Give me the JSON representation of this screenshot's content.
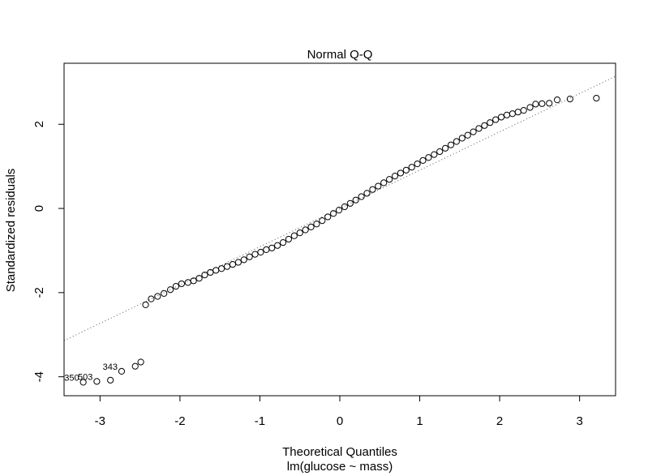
{
  "chart_data": {
    "type": "scatter",
    "title": "Normal Q-Q",
    "xlabel": "Theoretical Quantiles",
    "subtitle": "lm(glucose ~ mass)",
    "ylabel": "Standardized residuals",
    "xlim": [
      -3.45,
      3.45
    ],
    "ylim": [
      -4.45,
      3.45
    ],
    "x_ticks": [
      -3,
      -2,
      -1,
      0,
      1,
      2,
      3
    ],
    "y_ticks": [
      -4,
      -2,
      0,
      2
    ],
    "x_tick_labels": [
      "-3",
      "-2",
      "-1",
      "0",
      "1",
      "2",
      "3"
    ],
    "y_tick_labels": [
      "-4",
      "-2",
      "0",
      "2"
    ],
    "grid": false,
    "reference_line": {
      "style": "dotted",
      "intercept": 0.0,
      "slope": 0.91
    },
    "series": [
      {
        "points": [
          {
            "x": -3.21,
            "y": -4.13
          },
          {
            "x": -3.04,
            "y": -4.11
          },
          {
            "x": -2.87,
            "y": -4.08
          },
          {
            "x": -2.73,
            "y": -3.87
          },
          {
            "x": -2.56,
            "y": -3.75
          },
          {
            "x": -2.49,
            "y": -3.65
          },
          {
            "x": -2.43,
            "y": -2.29
          },
          {
            "x": -2.36,
            "y": -2.15
          },
          {
            "x": -2.28,
            "y": -2.09
          },
          {
            "x": -2.2,
            "y": -2.02
          },
          {
            "x": -2.12,
            "y": -1.93
          },
          {
            "x": -2.05,
            "y": -1.85
          },
          {
            "x": -1.98,
            "y": -1.79
          },
          {
            "x": -1.9,
            "y": -1.76
          },
          {
            "x": -1.83,
            "y": -1.72
          },
          {
            "x": -1.76,
            "y": -1.66
          },
          {
            "x": -1.69,
            "y": -1.58
          },
          {
            "x": -1.62,
            "y": -1.52
          },
          {
            "x": -1.55,
            "y": -1.47
          },
          {
            "x": -1.48,
            "y": -1.43
          },
          {
            "x": -1.41,
            "y": -1.38
          },
          {
            "x": -1.34,
            "y": -1.33
          },
          {
            "x": -1.27,
            "y": -1.28
          },
          {
            "x": -1.2,
            "y": -1.22
          },
          {
            "x": -1.13,
            "y": -1.15
          },
          {
            "x": -1.06,
            "y": -1.09
          },
          {
            "x": -0.99,
            "y": -1.04
          },
          {
            "x": -0.92,
            "y": -0.98
          },
          {
            "x": -0.85,
            "y": -0.94
          },
          {
            "x": -0.78,
            "y": -0.88
          },
          {
            "x": -0.71,
            "y": -0.81
          },
          {
            "x": -0.64,
            "y": -0.73
          },
          {
            "x": -0.57,
            "y": -0.65
          },
          {
            "x": -0.5,
            "y": -0.58
          },
          {
            "x": -0.43,
            "y": -0.51
          },
          {
            "x": -0.36,
            "y": -0.44
          },
          {
            "x": -0.29,
            "y": -0.37
          },
          {
            "x": -0.22,
            "y": -0.29
          },
          {
            "x": -0.15,
            "y": -0.2
          },
          {
            "x": -0.08,
            "y": -0.12
          },
          {
            "x": -0.01,
            "y": -0.04
          },
          {
            "x": 0.06,
            "y": 0.04
          },
          {
            "x": 0.13,
            "y": 0.12
          },
          {
            "x": 0.2,
            "y": 0.2
          },
          {
            "x": 0.27,
            "y": 0.28
          },
          {
            "x": 0.34,
            "y": 0.36
          },
          {
            "x": 0.41,
            "y": 0.45
          },
          {
            "x": 0.48,
            "y": 0.53
          },
          {
            "x": 0.55,
            "y": 0.61
          },
          {
            "x": 0.62,
            "y": 0.69
          },
          {
            "x": 0.69,
            "y": 0.77
          },
          {
            "x": 0.76,
            "y": 0.84
          },
          {
            "x": 0.83,
            "y": 0.91
          },
          {
            "x": 0.9,
            "y": 0.98
          },
          {
            "x": 0.97,
            "y": 1.06
          },
          {
            "x": 1.04,
            "y": 1.14
          },
          {
            "x": 1.11,
            "y": 1.21
          },
          {
            "x": 1.18,
            "y": 1.28
          },
          {
            "x": 1.25,
            "y": 1.35
          },
          {
            "x": 1.32,
            "y": 1.43
          },
          {
            "x": 1.39,
            "y": 1.51
          },
          {
            "x": 1.46,
            "y": 1.59
          },
          {
            "x": 1.53,
            "y": 1.67
          },
          {
            "x": 1.6,
            "y": 1.74
          },
          {
            "x": 1.67,
            "y": 1.82
          },
          {
            "x": 1.74,
            "y": 1.9
          },
          {
            "x": 1.81,
            "y": 1.97
          },
          {
            "x": 1.88,
            "y": 2.04
          },
          {
            "x": 1.95,
            "y": 2.11
          },
          {
            "x": 2.02,
            "y": 2.17
          },
          {
            "x": 2.09,
            "y": 2.22
          },
          {
            "x": 2.16,
            "y": 2.25
          },
          {
            "x": 2.23,
            "y": 2.29
          },
          {
            "x": 2.3,
            "y": 2.33
          },
          {
            "x": 2.38,
            "y": 2.4
          },
          {
            "x": 2.45,
            "y": 2.48
          },
          {
            "x": 2.53,
            "y": 2.49
          },
          {
            "x": 2.62,
            "y": 2.5
          },
          {
            "x": 2.72,
            "y": 2.58
          },
          {
            "x": 2.88,
            "y": 2.6
          },
          {
            "x": 3.21,
            "y": 2.62
          }
        ]
      }
    ],
    "annotations": [
      {
        "text": "343",
        "x": -2.73,
        "y": -3.87
      },
      {
        "text": "503",
        "x": -3.04,
        "y": -4.11
      },
      {
        "text": "350",
        "x": -3.21,
        "y": -4.13
      }
    ]
  }
}
